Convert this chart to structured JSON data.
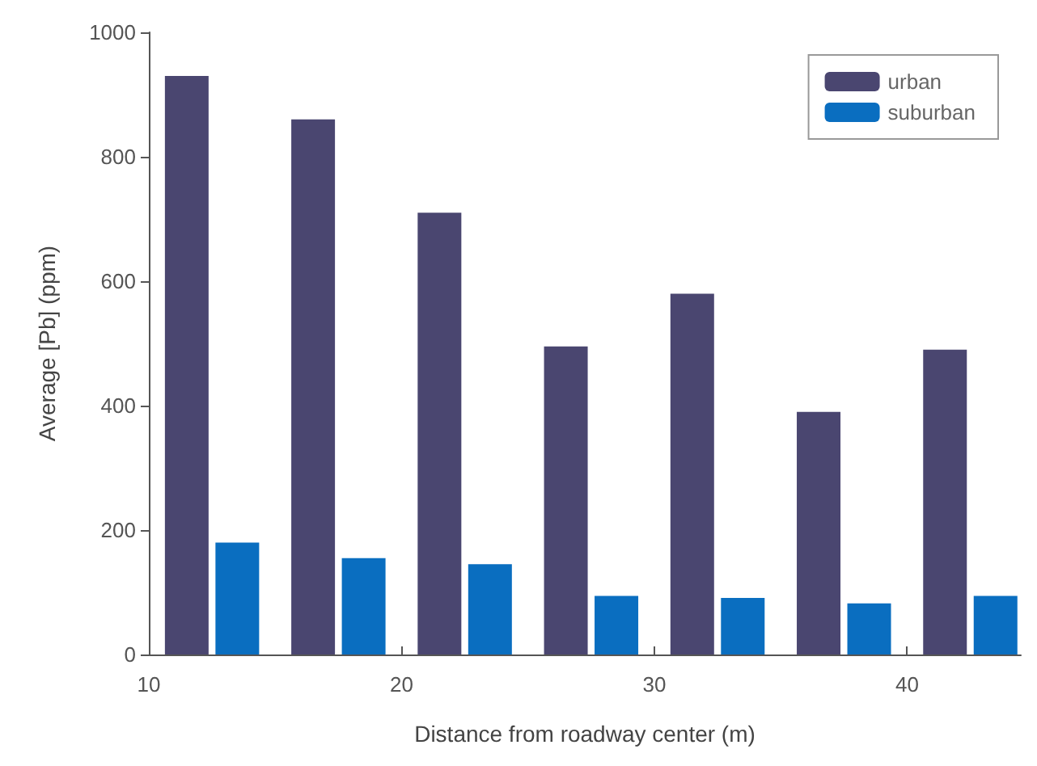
{
  "chart_data": {
    "type": "bar",
    "xlabel": "Distance from roadway center (m)",
    "ylabel": "Average [Pb] (ppm)",
    "series": [
      {
        "name": "urban",
        "color": "#4a4670",
        "x": [
          11.5,
          16.5,
          21.5,
          26.5,
          31.5,
          36.5,
          41.5
        ],
        "values": [
          930,
          860,
          710,
          495,
          580,
          390,
          490
        ]
      },
      {
        "name": "suburban",
        "color": "#0a6ec0",
        "x": [
          13.5,
          18.5,
          23.5,
          28.5,
          33.5,
          38.5,
          43.5
        ],
        "values": [
          180,
          155,
          145,
          94,
          91,
          82,
          94
        ]
      }
    ],
    "xlim": [
      10,
      44.5
    ],
    "xticks": [
      10,
      20,
      30,
      40
    ],
    "ylim": [
      0,
      1000
    ],
    "yticks": [
      0,
      200,
      400,
      600,
      800,
      1000
    ],
    "grid": false,
    "legend": "top right"
  }
}
